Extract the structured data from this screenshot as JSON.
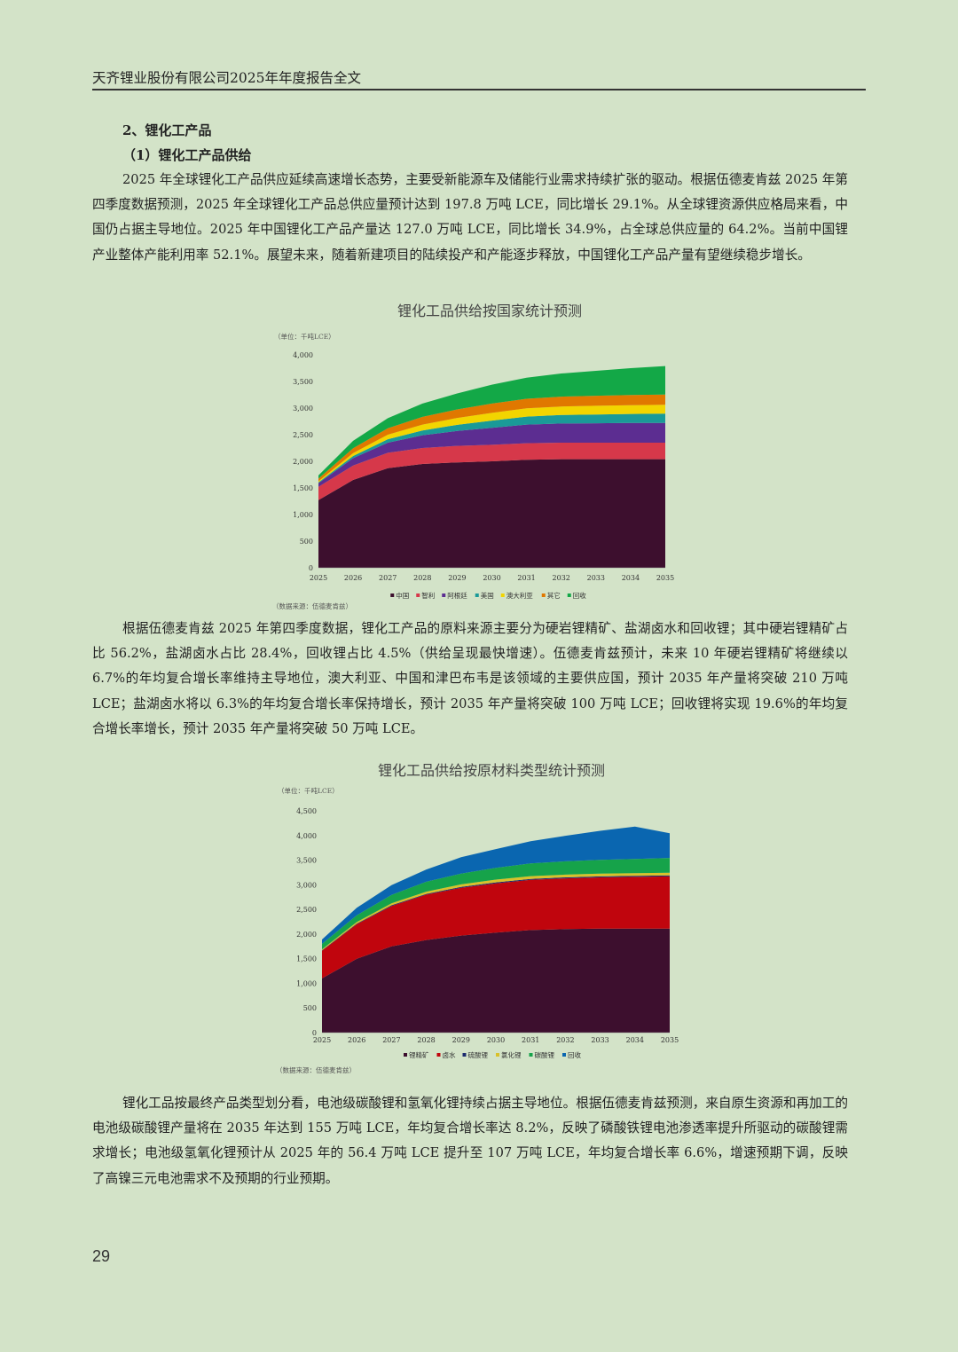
{
  "header": {
    "title": "天齐锂业股份有限公司2025年年度报告全文"
  },
  "section": {
    "heading": "2、锂化工产品",
    "subheading": "（1）锂化工产品供给"
  },
  "paragraphs": [
    "2025 年全球锂化工产品供应延续高速增长态势，主要受新能源车及储能行业需求持续扩张的驱动。根据伍德麦肯兹 2025 年第四季度数据预测，2025 年全球锂化工产品总供应量预计达到 197.8 万吨 LCE，同比增长 29.1%。从全球锂资源供应格局来看，中国仍占据主导地位。2025 年中国锂化工产品产量达 127.0 万吨 LCE，同比增长 34.9%，占全球总供应量的 64.2%。当前中国锂产业整体产能利用率 52.1%。展望未来，随着新建项目的陆续投产和产能逐步释放，中国锂化工产品产量有望继续稳步增长。",
    "根据伍德麦肯兹 2025 年第四季度数据，锂化工产品的原料来源主要分为硬岩锂精矿、盐湖卤水和回收锂；其中硬岩锂精矿占比 56.2%，盐湖卤水占比 28.4%，回收锂占比 4.5%（供给呈现最快增速）。伍德麦肯兹预计，未来 10 年硬岩锂精矿将继续以 6.7%的年均复合增长率维持主导地位，澳大利亚、中国和津巴布韦是该领域的主要供应国，预计 2035 年产量将突破 210 万吨 LCE；盐湖卤水将以 6.3%的年均复合增长率保持增长，预计 2035 年产量将突破 100 万吨 LCE；回收锂将实现 19.6%的年均复合增长率增长，预计 2035 年产量将突破 50 万吨 LCE。",
    "锂化工品按最终产品类型划分看，电池级碳酸锂和氢氧化锂持续占据主导地位。根据伍德麦肯兹预测，来自原生资源和再加工的电池级碳酸锂产量将在 2035 年达到 155 万吨 LCE，年均复合增长率达 8.2%，反映了磷酸铁锂电池渗透率提升所驱动的碳酸锂需求增长；电池级氢氧化锂预计从 2025 年的 56.4 万吨 LCE 提升至 107 万吨 LCE，年均复合增长率 6.6%，增速预期下调，反映了高镍三元电池需求不及预期的行业预期。"
  ],
  "page_number": "29",
  "chart_data": [
    {
      "type": "area",
      "stacked": true,
      "title": "锂化工品供给按国家统计预测",
      "unit_label": "（单位：千吨LCE）",
      "source": "（数据来源：伍德麦肯兹）",
      "ylim": [
        0,
        4000
      ],
      "yticks": [
        "0",
        "500",
        "1,000",
        "1,500",
        "2,000",
        "2,500",
        "3,000",
        "3,500",
        "4,000"
      ],
      "x": [
        "2025",
        "2026",
        "2027",
        "2028",
        "2029",
        "2030",
        "2031",
        "2032",
        "2033",
        "2034",
        "2035"
      ],
      "legend_position": "bottom",
      "series": [
        {
          "name": "中国",
          "color": "#3d0f2e",
          "values": [
            1270,
            1650,
            1870,
            1950,
            1980,
            2000,
            2030,
            2040,
            2040,
            2040,
            2040
          ]
        },
        {
          "name": "智利",
          "color": "#d6384a",
          "values": [
            250,
            270,
            290,
            300,
            310,
            310,
            310,
            310,
            310,
            310,
            310
          ]
        },
        {
          "name": "阿根廷",
          "color": "#5c2d91",
          "values": [
            70,
            140,
            190,
            240,
            280,
            320,
            350,
            360,
            365,
            370,
            370
          ]
        },
        {
          "name": "美国",
          "color": "#1a9a98",
          "values": [
            15,
            40,
            65,
            90,
            115,
            135,
            150,
            160,
            165,
            170,
            175
          ]
        },
        {
          "name": "澳大利亚",
          "color": "#f2d500",
          "values": [
            20,
            55,
            85,
            110,
            130,
            145,
            155,
            160,
            163,
            165,
            167
          ]
        },
        {
          "name": "其它",
          "color": "#e07800",
          "values": [
            50,
            90,
            120,
            145,
            160,
            175,
            180,
            185,
            188,
            190,
            193
          ]
        },
        {
          "name": "回收",
          "color": "#13a847",
          "values": [
            60,
            140,
            190,
            250,
            300,
            355,
            395,
            435,
            469,
            505,
            535
          ]
        }
      ]
    },
    {
      "type": "area",
      "stacked": true,
      "title": "锂化工品供给按原材料类型统计预测",
      "unit_label": "（单位：千吨LCE）",
      "source": "（数据来源：伍德麦肯兹）",
      "ylim": [
        0,
        4500
      ],
      "yticks": [
        "0",
        "500",
        "1,000",
        "1,500",
        "2,000",
        "2,500",
        "3,000",
        "3,500",
        "4,000",
        "4,500"
      ],
      "x": [
        "2025",
        "2026",
        "2027",
        "2028",
        "2029",
        "2030",
        "2031",
        "2032",
        "2033",
        "2034",
        "2035"
      ],
      "legend_position": "bottom",
      "series": [
        {
          "name": "锂精矿",
          "color": "#3d0f2e",
          "values": [
            1100,
            1500,
            1750,
            1880,
            1970,
            2030,
            2080,
            2100,
            2110,
            2110,
            2110
          ]
        },
        {
          "name": "卤水",
          "color": "#c0050d",
          "values": [
            560,
            700,
            820,
            920,
            970,
            1000,
            1020,
            1030,
            1040,
            1050,
            1060
          ]
        },
        {
          "name": "硫酸锂",
          "color": "#1c2b6e",
          "values": [
            10,
            12,
            14,
            16,
            18,
            20,
            20,
            20,
            20,
            20,
            20
          ]
        },
        {
          "name": "氯化锂",
          "color": "#d9c12a",
          "values": [
            20,
            30,
            40,
            45,
            50,
            55,
            55,
            55,
            55,
            55,
            55
          ]
        },
        {
          "name": "碳酸锂",
          "color": "#16a34a",
          "values": [
            110,
            140,
            170,
            200,
            220,
            240,
            260,
            270,
            280,
            290,
            300
          ]
        },
        {
          "name": "回收",
          "color": "#0a66b0",
          "values": [
            90,
            150,
            200,
            250,
            330,
            380,
            450,
            520,
            590,
            655,
            500
          ]
        }
      ]
    }
  ]
}
